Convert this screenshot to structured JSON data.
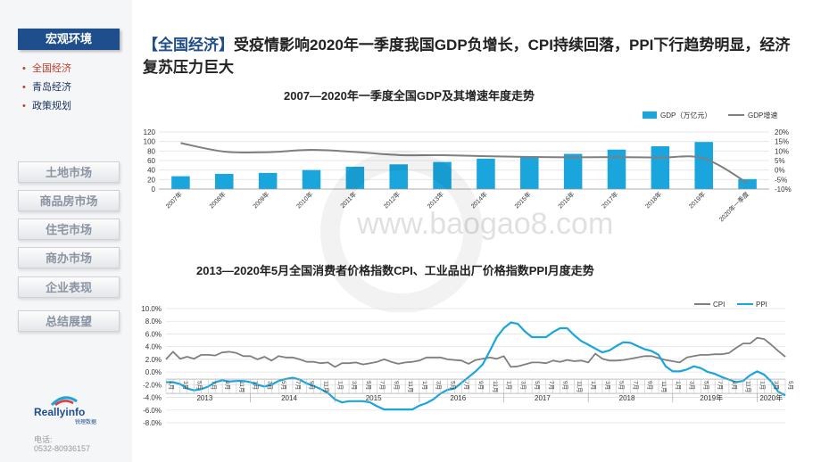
{
  "sidebar": {
    "active": "宏观环境",
    "sub": [
      "全国经济",
      "青岛经济",
      "政策规划"
    ],
    "nav": [
      "土地市场",
      "商品房市场",
      "住宅市场",
      "商办市场",
      "企业表现",
      "总结展望"
    ],
    "logo_text": "Reallyinfo",
    "logo_sub": "锐理数据",
    "contact_label": "电话:",
    "contact_phone": "0532-80936157"
  },
  "headline": {
    "tag": "【全国经济】",
    "text": "受疫情影响2020年一季度我国GDP负增长，CPI持续回落，PPI下行趋势明显，经济复苏压力巨大"
  },
  "watermark": "www.baogao8.com",
  "chart_data": [
    {
      "type": "bar",
      "title": "2007—2020年一季度全国GDP及其增速年度走势",
      "categories": [
        "2007年",
        "2008年",
        "2009年",
        "2010年",
        "2011年",
        "2012年",
        "2013年",
        "2014年",
        "2015年",
        "2016年",
        "2017年",
        "2018年",
        "2019年",
        "2020年一季度"
      ],
      "series": [
        {
          "name": "GDP（万亿元）",
          "kind": "bar",
          "axis": "left",
          "color": "#1aa5dc",
          "values": [
            27,
            32,
            34,
            40,
            47,
            52,
            57,
            64,
            69,
            74,
            83,
            90,
            99,
            21
          ]
        },
        {
          "name": "GDP增速",
          "kind": "line",
          "axis": "right",
          "color": "#7f7f7f",
          "values": [
            14.2,
            9.7,
            9.4,
            10.6,
            9.5,
            7.9,
            7.8,
            7.3,
            6.9,
            6.7,
            6.8,
            6.6,
            6.1,
            -6.8
          ]
        }
      ],
      "yticks_left": [
        0,
        20,
        40,
        60,
        80,
        100,
        120
      ],
      "yticks_right": [
        "-10%",
        "-5%",
        "0%",
        "5%",
        "10%",
        "15%",
        "20%"
      ],
      "ylim_left": [
        0,
        120
      ],
      "ylim_right": [
        -10,
        20
      ],
      "legend_position": "top-right"
    },
    {
      "type": "line",
      "title": "2013—2020年5月全国消费者价格指数CPI、工业品出厂价格指数PPI月度走势",
      "x_start": "2013-01",
      "x_end": "2020-05",
      "series": [
        {
          "name": "CPI",
          "color": "#7f7f7f",
          "values": [
            2.0,
            3.2,
            2.1,
            2.4,
            2.1,
            2.7,
            2.7,
            2.6,
            3.1,
            3.2,
            3.0,
            2.5,
            2.5,
            2.0,
            2.4,
            1.8,
            2.5,
            2.3,
            2.3,
            2.0,
            1.6,
            1.6,
            1.4,
            1.5,
            0.8,
            1.4,
            1.4,
            1.5,
            1.2,
            1.4,
            1.6,
            2.0,
            1.6,
            1.3,
            1.5,
            1.6,
            1.8,
            2.3,
            2.3,
            2.3,
            2.0,
            1.9,
            1.8,
            1.3,
            1.9,
            2.1,
            2.3,
            2.1,
            2.5,
            0.8,
            0.9,
            1.2,
            1.5,
            1.5,
            1.4,
            1.8,
            1.6,
            1.9,
            1.7,
            1.8,
            1.5,
            2.9,
            2.1,
            1.8,
            1.8,
            1.9,
            2.1,
            2.3,
            2.5,
            2.5,
            2.2,
            1.9,
            1.7,
            1.5,
            2.3,
            2.5,
            2.7,
            2.7,
            2.8,
            2.8,
            3.0,
            3.8,
            4.5,
            4.5,
            5.4,
            5.2,
            4.3,
            3.3,
            2.4
          ]
        },
        {
          "name": "PPI",
          "color": "#1aa5dc",
          "values": [
            -1.6,
            -1.6,
            -1.9,
            -2.6,
            -2.9,
            -2.7,
            -2.3,
            -1.6,
            -1.3,
            -1.5,
            -1.4,
            -1.4,
            -1.6,
            -2.0,
            -2.3,
            -2.0,
            -1.4,
            -1.1,
            -0.9,
            -1.2,
            -1.8,
            -2.2,
            -2.7,
            -3.3,
            -4.3,
            -4.8,
            -4.6,
            -4.6,
            -4.6,
            -4.8,
            -5.4,
            -5.9,
            -5.9,
            -5.9,
            -5.9,
            -5.9,
            -5.3,
            -4.9,
            -4.3,
            -3.4,
            -2.8,
            -2.6,
            -1.7,
            -0.8,
            0.1,
            1.2,
            3.3,
            5.5,
            6.9,
            7.8,
            7.6,
            6.4,
            5.5,
            5.5,
            5.5,
            6.3,
            6.9,
            6.9,
            5.8,
            4.9,
            4.3,
            3.7,
            3.1,
            3.4,
            4.1,
            4.7,
            4.6,
            4.1,
            3.6,
            3.3,
            2.7,
            0.9,
            0.1,
            0.1,
            0.4,
            0.9,
            0.6,
            0.0,
            -0.3,
            -0.8,
            -1.2,
            -1.6,
            -1.4,
            -0.5,
            0.1,
            -0.4,
            -1.5,
            -3.1,
            -3.7
          ]
        }
      ],
      "yticks": [
        "10.0%",
        "8.0%",
        "6.0%",
        "4.0%",
        "2.0%",
        "0.0%",
        "-2.0%",
        "-4.0%",
        "-6.0%",
        "-8.0%"
      ],
      "ylim": [
        -8,
        10
      ],
      "year_labels": [
        "2013",
        "2014",
        "2015",
        "2016",
        "2017",
        "2018",
        "2019年",
        "2020年"
      ],
      "month_tick_labels": [
        "1月",
        "3月",
        "5月",
        "7月",
        "9月",
        "11月"
      ],
      "legend_position": "top-right"
    }
  ]
}
